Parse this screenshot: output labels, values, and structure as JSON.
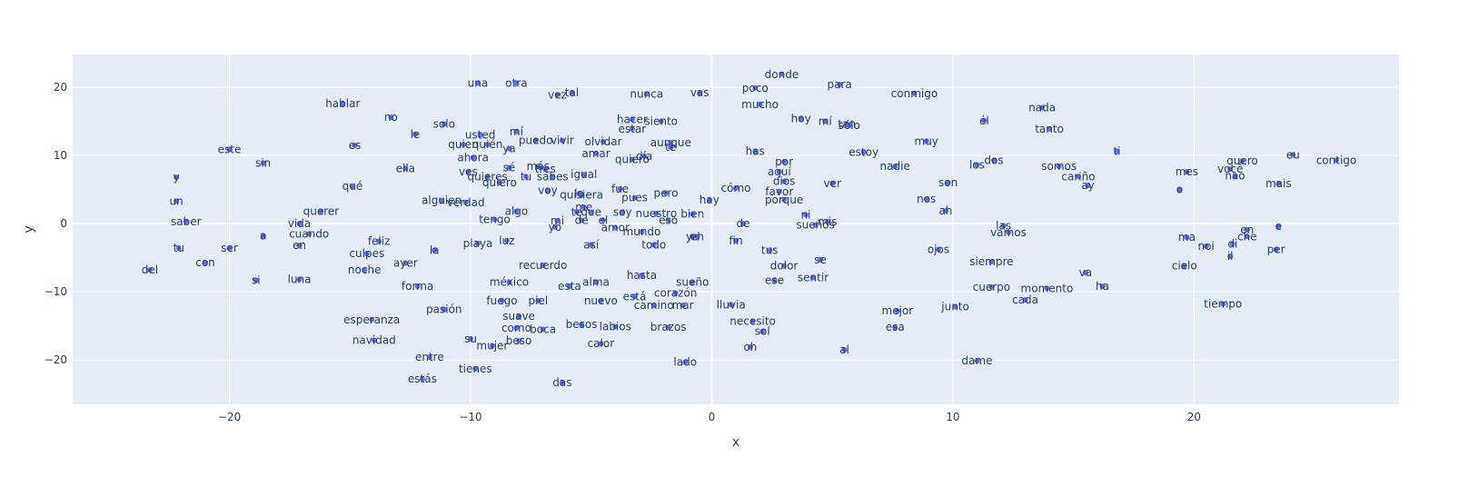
{
  "chart_data": {
    "type": "scatter",
    "title": "",
    "xlabel": "x",
    "ylabel": "y",
    "xlim": [
      -26.5,
      28.5
    ],
    "ylim": [
      -26.5,
      24.8
    ],
    "xticks": [
      -20,
      -10,
      0,
      10,
      20
    ],
    "yticks": [
      -20,
      -10,
      0,
      10,
      20
    ],
    "grid": true,
    "colors": {
      "plot_bg": "#e5ecf6",
      "grid": "#ffffff",
      "marker": "#636efa",
      "text": "#2a3f5f"
    },
    "points": [
      {
        "x": -9.7,
        "y": 20.6,
        "label": "una"
      },
      {
        "x": -8.1,
        "y": 20.6,
        "label": "otra"
      },
      {
        "x": 2.9,
        "y": 21.9,
        "label": "donde"
      },
      {
        "x": 5.3,
        "y": 20.4,
        "label": "para"
      },
      {
        "x": -6.4,
        "y": 18.9,
        "label": "vez"
      },
      {
        "x": -5.8,
        "y": 19.2,
        "label": "tal"
      },
      {
        "x": -2.7,
        "y": 19.0,
        "label": "nunca"
      },
      {
        "x": -0.5,
        "y": 19.2,
        "label": "vas"
      },
      {
        "x": 1.8,
        "y": 19.9,
        "label": "poco"
      },
      {
        "x": 8.4,
        "y": 19.1,
        "label": "conmigo"
      },
      {
        "x": -15.3,
        "y": 17.6,
        "label": "hablar"
      },
      {
        "x": 2.0,
        "y": 17.5,
        "label": "mucho"
      },
      {
        "x": 13.7,
        "y": 17.0,
        "label": "nada"
      },
      {
        "x": -13.3,
        "y": 15.6,
        "label": "no"
      },
      {
        "x": 3.7,
        "y": 15.4,
        "label": "hoy"
      },
      {
        "x": -3.3,
        "y": 15.3,
        "label": "hacer"
      },
      {
        "x": 4.7,
        "y": 15.0,
        "label": "mí"
      },
      {
        "x": -2.1,
        "y": 15.0,
        "label": "siento"
      },
      {
        "x": 11.3,
        "y": 15.1,
        "label": "él"
      },
      {
        "x": -11.1,
        "y": 14.6,
        "label": "solo"
      },
      {
        "x": 5.6,
        "y": 14.6,
        "label": "tan"
      },
      {
        "x": -3.3,
        "y": 13.9,
        "label": "estar"
      },
      {
        "x": 5.7,
        "y": 14.4,
        "label": "sólo"
      },
      {
        "x": 14.0,
        "y": 13.9,
        "label": "tanto"
      },
      {
        "x": -12.3,
        "y": 13.1,
        "label": "le"
      },
      {
        "x": -9.6,
        "y": 13.0,
        "label": "usted"
      },
      {
        "x": -8.1,
        "y": 13.5,
        "label": "mí"
      },
      {
        "x": -4.5,
        "y": 12.0,
        "label": "olvidar"
      },
      {
        "x": -14.8,
        "y": 11.5,
        "label": "es"
      },
      {
        "x": -10.3,
        "y": 11.6,
        "label": "quien"
      },
      {
        "x": -9.3,
        "y": 11.6,
        "label": "quién"
      },
      {
        "x": -7.3,
        "y": 12.2,
        "label": "puedo"
      },
      {
        "x": -6.2,
        "y": 12.2,
        "label": "vivir"
      },
      {
        "x": -1.7,
        "y": 11.9,
        "label": "aunque"
      },
      {
        "x": -20.0,
        "y": 10.9,
        "label": "este"
      },
      {
        "x": -8.4,
        "y": 11.0,
        "label": "ya"
      },
      {
        "x": -4.8,
        "y": 10.3,
        "label": "amar"
      },
      {
        "x": -1.7,
        "y": 11.2,
        "label": "te"
      },
      {
        "x": 1.8,
        "y": 10.6,
        "label": "has"
      },
      {
        "x": 6.3,
        "y": 10.5,
        "label": "estoy"
      },
      {
        "x": 8.9,
        "y": 12.1,
        "label": "muy"
      },
      {
        "x": 16.8,
        "y": 10.6,
        "label": "ti"
      },
      {
        "x": 24.1,
        "y": 10.1,
        "label": "eu"
      },
      {
        "x": -2.8,
        "y": 9.9,
        "label": "día"
      },
      {
        "x": -9.9,
        "y": 9.7,
        "label": "ahora"
      },
      {
        "x": -3.3,
        "y": 9.4,
        "label": "quiero"
      },
      {
        "x": -18.6,
        "y": 8.9,
        "label": "sin"
      },
      {
        "x": 3.0,
        "y": 9.1,
        "label": "por"
      },
      {
        "x": 7.6,
        "y": 8.4,
        "label": "nadie"
      },
      {
        "x": 11.0,
        "y": 8.6,
        "label": "los"
      },
      {
        "x": 11.7,
        "y": 9.3,
        "label": "dos"
      },
      {
        "x": 14.4,
        "y": 8.4,
        "label": "somos"
      },
      {
        "x": 22.0,
        "y": 9.2,
        "label": "quero"
      },
      {
        "x": 25.9,
        "y": 9.3,
        "label": "contigo"
      },
      {
        "x": -12.7,
        "y": 8.1,
        "label": "ella"
      },
      {
        "x": -8.4,
        "y": 8.2,
        "label": "sé"
      },
      {
        "x": -7.2,
        "y": 8.4,
        "label": "más"
      },
      {
        "x": -6.9,
        "y": 8.0,
        "label": "tres"
      },
      {
        "x": -10.1,
        "y": 7.6,
        "label": "ves"
      },
      {
        "x": 2.8,
        "y": 7.6,
        "label": "aquí"
      },
      {
        "x": 21.5,
        "y": 8.0,
        "label": "você"
      },
      {
        "x": 19.7,
        "y": 7.6,
        "label": "mes"
      },
      {
        "x": -22.2,
        "y": 6.8,
        "label": "y"
      },
      {
        "x": -9.3,
        "y": 6.9,
        "label": "quieres"
      },
      {
        "x": -7.7,
        "y": 6.9,
        "label": "tu"
      },
      {
        "x": -6.6,
        "y": 6.9,
        "label": "sabes"
      },
      {
        "x": -5.3,
        "y": 7.2,
        "label": "igual"
      },
      {
        "x": 3.0,
        "y": 6.2,
        "label": "dios"
      },
      {
        "x": 21.7,
        "y": 7.0,
        "label": "nao"
      },
      {
        "x": 15.2,
        "y": 6.9,
        "label": "cariño"
      },
      {
        "x": -8.8,
        "y": 6.0,
        "label": "quiero"
      },
      {
        "x": 5.0,
        "y": 5.9,
        "label": "ver"
      },
      {
        "x": 9.8,
        "y": 6.0,
        "label": "son"
      },
      {
        "x": 15.6,
        "y": 5.6,
        "label": "ay"
      },
      {
        "x": 23.5,
        "y": 5.9,
        "label": "mais"
      },
      {
        "x": -14.9,
        "y": 5.5,
        "label": "qué"
      },
      {
        "x": 1.0,
        "y": 5.2,
        "label": "cómo"
      },
      {
        "x": 2.8,
        "y": 4.7,
        "label": "favor"
      },
      {
        "x": -6.8,
        "y": 4.9,
        "label": "voy"
      },
      {
        "x": -3.8,
        "y": 5.1,
        "label": "fue"
      },
      {
        "x": -1.9,
        "y": 4.5,
        "label": "pero"
      },
      {
        "x": -5.4,
        "y": 4.2,
        "label": "quisiera"
      },
      {
        "x": -3.2,
        "y": 3.8,
        "label": "pues"
      },
      {
        "x": -0.1,
        "y": 3.5,
        "label": "hay"
      },
      {
        "x": 19.4,
        "y": 5.0,
        "label": "o"
      },
      {
        "x": 3.0,
        "y": 3.5,
        "label": "porque"
      },
      {
        "x": 8.9,
        "y": 3.6,
        "label": "nos"
      },
      {
        "x": -22.2,
        "y": 3.3,
        "label": "un"
      },
      {
        "x": -11.2,
        "y": 3.4,
        "label": "alguien"
      },
      {
        "x": -10.2,
        "y": 3.1,
        "label": "verdad"
      },
      {
        "x": -5.5,
        "y": 4.4,
        "label": "lo"
      },
      {
        "x": -5.3,
        "y": 2.4,
        "label": "me"
      },
      {
        "x": -16.2,
        "y": 1.8,
        "label": "querer"
      },
      {
        "x": -8.1,
        "y": 1.8,
        "label": "algo"
      },
      {
        "x": -5.6,
        "y": 1.7,
        "label": "te"
      },
      {
        "x": -5.0,
        "y": 1.7,
        "label": "que"
      },
      {
        "x": -3.7,
        "y": 1.7,
        "label": "soy"
      },
      {
        "x": -2.3,
        "y": 1.5,
        "label": "nuestro"
      },
      {
        "x": -0.8,
        "y": 1.4,
        "label": "bien"
      },
      {
        "x": 9.7,
        "y": 1.9,
        "label": "ah"
      },
      {
        "x": -9.0,
        "y": 0.6,
        "label": "tengo"
      },
      {
        "x": -5.4,
        "y": 0.5,
        "label": "de"
      },
      {
        "x": -4.5,
        "y": 0.5,
        "label": "el"
      },
      {
        "x": -1.8,
        "y": 0.5,
        "label": "eso"
      },
      {
        "x": -6.4,
        "y": 0.4,
        "label": "mi"
      },
      {
        "x": 3.9,
        "y": 1.3,
        "label": "ni"
      },
      {
        "x": -21.8,
        "y": 0.3,
        "label": "saber"
      },
      {
        "x": -17.1,
        "y": 0.0,
        "label": "vida"
      },
      {
        "x": 1.3,
        "y": 0.0,
        "label": "de"
      },
      {
        "x": 4.8,
        "y": 0.3,
        "label": "mis"
      },
      {
        "x": 4.3,
        "y": -0.2,
        "label": "sueños"
      },
      {
        "x": 12.1,
        "y": -0.3,
        "label": "las"
      },
      {
        "x": -6.5,
        "y": -0.5,
        "label": "yo"
      },
      {
        "x": -4.0,
        "y": -0.6,
        "label": "amor"
      },
      {
        "x": -2.9,
        "y": -1.2,
        "label": "mundo"
      },
      {
        "x": 12.3,
        "y": -1.3,
        "label": "vamos"
      },
      {
        "x": 23.5,
        "y": -0.4,
        "label": "e"
      },
      {
        "x": 22.2,
        "y": -0.9,
        "label": "en"
      },
      {
        "x": -16.7,
        "y": -1.5,
        "label": "cuando"
      },
      {
        "x": -18.6,
        "y": -1.8,
        "label": "a"
      },
      {
        "x": -0.8,
        "y": -1.9,
        "label": "ya"
      },
      {
        "x": -0.6,
        "y": -1.9,
        "label": "eh"
      },
      {
        "x": 22.2,
        "y": -1.9,
        "label": "che"
      },
      {
        "x": 19.7,
        "y": -2.0,
        "label": "ma"
      },
      {
        "x": -8.5,
        "y": -2.5,
        "label": "luz"
      },
      {
        "x": 1.0,
        "y": -2.5,
        "label": "fin"
      },
      {
        "x": -13.8,
        "y": -2.6,
        "label": "feliz"
      },
      {
        "x": -9.7,
        "y": -2.9,
        "label": "playa"
      },
      {
        "x": -2.4,
        "y": -3.1,
        "label": "todo"
      },
      {
        "x": -17.1,
        "y": -3.2,
        "label": "en"
      },
      {
        "x": -5.0,
        "y": -3.1,
        "label": "así"
      },
      {
        "x": 21.6,
        "y": -3.0,
        "label": "di"
      },
      {
        "x": 20.5,
        "y": -3.3,
        "label": "noi"
      },
      {
        "x": -22.1,
        "y": -3.6,
        "label": "tu"
      },
      {
        "x": -20.0,
        "y": -3.6,
        "label": "ser"
      },
      {
        "x": -11.5,
        "y": -3.9,
        "label": "la"
      },
      {
        "x": 2.4,
        "y": -3.9,
        "label": "tus"
      },
      {
        "x": 9.4,
        "y": -3.8,
        "label": "ojos"
      },
      {
        "x": 23.4,
        "y": -3.8,
        "label": "per"
      },
      {
        "x": -14.3,
        "y": -4.4,
        "label": "culpes"
      },
      {
        "x": 21.5,
        "y": -4.8,
        "label": "il"
      },
      {
        "x": 4.5,
        "y": -5.3,
        "label": "se"
      },
      {
        "x": -21.0,
        "y": -5.7,
        "label": "con"
      },
      {
        "x": -12.7,
        "y": -5.8,
        "label": "ayer"
      },
      {
        "x": -7.0,
        "y": -6.1,
        "label": "recuerdo"
      },
      {
        "x": 11.6,
        "y": -5.6,
        "label": "siempre"
      },
      {
        "x": 3.0,
        "y": -6.2,
        "label": "dolor"
      },
      {
        "x": 19.6,
        "y": -6.2,
        "label": "cielo"
      },
      {
        "x": -23.3,
        "y": -6.8,
        "label": "del"
      },
      {
        "x": -14.4,
        "y": -6.8,
        "label": "noche"
      },
      {
        "x": 15.5,
        "y": -7.2,
        "label": "va"
      },
      {
        "x": -2.9,
        "y": -7.6,
        "label": "hasta"
      },
      {
        "x": -18.9,
        "y": -8.3,
        "label": "si"
      },
      {
        "x": -17.1,
        "y": -8.2,
        "label": "luna"
      },
      {
        "x": 2.6,
        "y": -8.3,
        "label": "ese"
      },
      {
        "x": 4.2,
        "y": -7.9,
        "label": "sentir"
      },
      {
        "x": -8.4,
        "y": -8.6,
        "label": "méxico"
      },
      {
        "x": -4.8,
        "y": -8.6,
        "label": "alma"
      },
      {
        "x": -0.8,
        "y": -8.6,
        "label": "sueño"
      },
      {
        "x": -12.2,
        "y": -9.2,
        "label": "forma"
      },
      {
        "x": -5.9,
        "y": -9.2,
        "label": "esta"
      },
      {
        "x": 11.6,
        "y": -9.3,
        "label": "cuerpo"
      },
      {
        "x": 13.9,
        "y": -9.5,
        "label": "momento"
      },
      {
        "x": 16.2,
        "y": -9.2,
        "label": "ha"
      },
      {
        "x": -1.5,
        "y": -10.2,
        "label": "corazón"
      },
      {
        "x": -3.2,
        "y": -10.7,
        "label": "está"
      },
      {
        "x": -8.7,
        "y": -11.3,
        "label": "fuego"
      },
      {
        "x": -7.2,
        "y": -11.3,
        "label": "piel"
      },
      {
        "x": -4.6,
        "y": -11.3,
        "label": "nuevo"
      },
      {
        "x": 13.0,
        "y": -11.2,
        "label": "cada"
      },
      {
        "x": -2.4,
        "y": -12.0,
        "label": "camino"
      },
      {
        "x": -1.2,
        "y": -12.0,
        "label": "mar"
      },
      {
        "x": 0.8,
        "y": -11.9,
        "label": "lluvia"
      },
      {
        "x": 10.1,
        "y": -12.2,
        "label": "junto"
      },
      {
        "x": 21.2,
        "y": -11.8,
        "label": "tiempo"
      },
      {
        "x": -11.1,
        "y": -12.6,
        "label": "pasión"
      },
      {
        "x": 7.7,
        "y": -12.8,
        "label": "mejor"
      },
      {
        "x": -8.0,
        "y": -13.6,
        "label": "suave"
      },
      {
        "x": -14.1,
        "y": -14.1,
        "label": "esperanza"
      },
      {
        "x": 1.7,
        "y": -14.3,
        "label": "necesito"
      },
      {
        "x": -5.4,
        "y": -14.8,
        "label": "besos"
      },
      {
        "x": -4.0,
        "y": -15.1,
        "label": "labios"
      },
      {
        "x": -1.8,
        "y": -15.2,
        "label": "brazos"
      },
      {
        "x": -8.1,
        "y": -15.3,
        "label": "como"
      },
      {
        "x": -7.0,
        "y": -15.5,
        "label": "boca"
      },
      {
        "x": 7.6,
        "y": -15.2,
        "label": "esa"
      },
      {
        "x": 2.1,
        "y": -15.8,
        "label": "sol"
      },
      {
        "x": -10.0,
        "y": -16.9,
        "label": "su"
      },
      {
        "x": -14.0,
        "y": -17.1,
        "label": "navidad"
      },
      {
        "x": -8.0,
        "y": -17.2,
        "label": "beso"
      },
      {
        "x": -4.6,
        "y": -17.6,
        "label": "calor"
      },
      {
        "x": -9.1,
        "y": -17.9,
        "label": "mujer"
      },
      {
        "x": 1.6,
        "y": -18.1,
        "label": "oh"
      },
      {
        "x": 5.5,
        "y": -18.5,
        "label": "al"
      },
      {
        "x": -11.7,
        "y": -19.6,
        "label": "entre"
      },
      {
        "x": -1.1,
        "y": -20.3,
        "label": "lado"
      },
      {
        "x": 11.0,
        "y": -20.1,
        "label": "dame"
      },
      {
        "x": -9.8,
        "y": -21.3,
        "label": "tienes"
      },
      {
        "x": -12.0,
        "y": -22.8,
        "label": "estás"
      },
      {
        "x": -6.2,
        "y": -23.3,
        "label": "das"
      }
    ]
  }
}
